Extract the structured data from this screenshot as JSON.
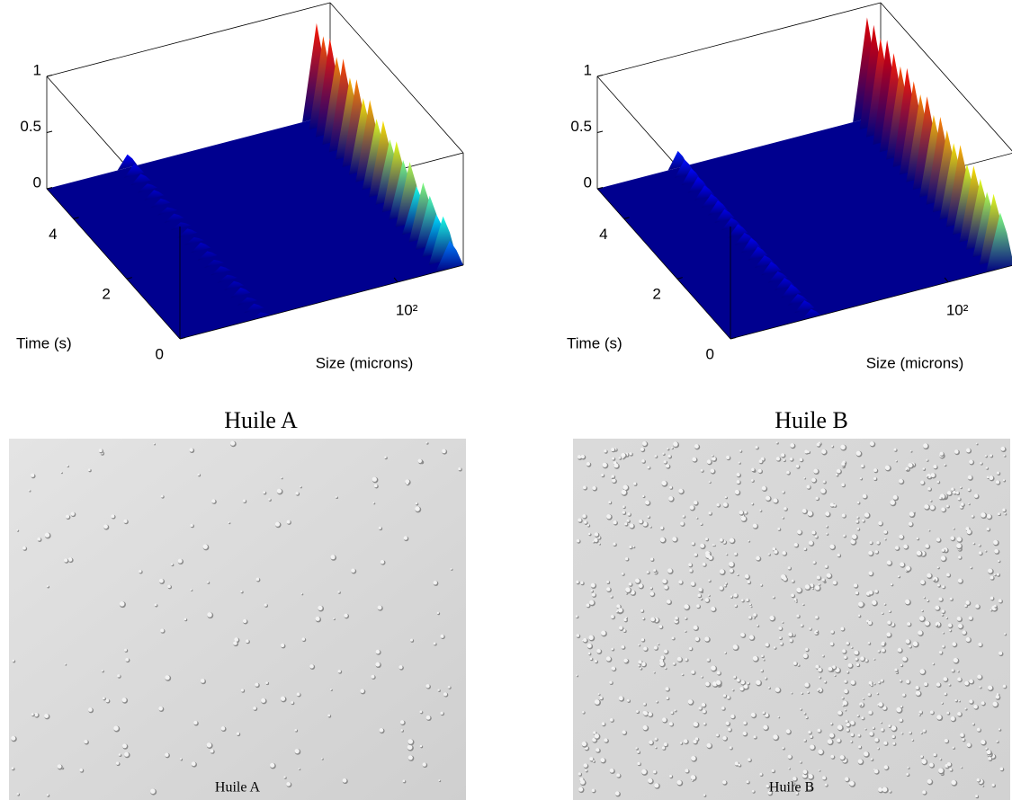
{
  "chart_data": [
    {
      "type": "surface3d",
      "caption": "Huile A",
      "micrograph_label": "Huile A",
      "x_label": "Size (microns)",
      "y_label": "Time (s)",
      "xscale": "log",
      "xlim": [
        1,
        400
      ],
      "xticks": [
        {
          "value": 100,
          "label": "10²"
        }
      ],
      "ylim": [
        0,
        5
      ],
      "yticks": [
        0,
        2,
        4
      ],
      "zlim": [
        0,
        1
      ],
      "zticks": [
        0,
        0.5,
        1
      ],
      "t": [
        0,
        0.25,
        0.5,
        0.75,
        1,
        1.25,
        1.5,
        1.75,
        2,
        2.25,
        2.5,
        2.75,
        3,
        3.25,
        3.5,
        3.75,
        4,
        4.25,
        4.5,
        4.75,
        5
      ],
      "ridges": [
        {
          "x": 5.5,
          "values": [
            0.05,
            0.06,
            0.05,
            0.07,
            0.06,
            0.05,
            0.06,
            0.05,
            0.06,
            0.07,
            0.05,
            0.06,
            0.05,
            0.06,
            0.05,
            0.06,
            0.07,
            0.06,
            0.08,
            0.1,
            0.12
          ]
        },
        {
          "x": 300,
          "values": [
            0.25,
            0.4,
            0.35,
            0.45,
            0.5,
            0.4,
            0.55,
            0.5,
            0.6,
            0.55,
            0.65,
            0.6,
            0.7,
            0.65,
            0.75,
            0.7,
            0.8,
            0.75,
            0.85,
            0.8,
            0.85
          ]
        }
      ]
    },
    {
      "type": "surface3d",
      "caption": "Huile B",
      "micrograph_label": "Huile B",
      "x_label": "Size (microns)",
      "y_label": "Time (s)",
      "xscale": "log",
      "xlim": [
        1,
        400
      ],
      "xticks": [
        {
          "value": 100,
          "label": "10²"
        }
      ],
      "ylim": [
        0,
        5
      ],
      "yticks": [
        0,
        2,
        4
      ],
      "zlim": [
        0,
        1
      ],
      "zticks": [
        0,
        0.5,
        1
      ],
      "t": [
        0,
        0.25,
        0.5,
        0.75,
        1,
        1.25,
        1.5,
        1.75,
        2,
        2.25,
        2.5,
        2.75,
        3,
        3.25,
        3.5,
        3.75,
        4,
        4.25,
        4.5,
        4.75,
        5
      ],
      "ridges": [
        {
          "x": 5.5,
          "values": [
            0.08,
            0.09,
            0.08,
            0.1,
            0.09,
            0.08,
            0.1,
            0.09,
            0.1,
            0.11,
            0.09,
            0.1,
            0.09,
            0.1,
            0.11,
            0.1,
            0.11,
            0.12,
            0.13,
            0.14,
            0.15
          ]
        },
        {
          "x": 300,
          "values": [
            0.5,
            0.6,
            0.55,
            0.6,
            0.65,
            0.6,
            0.7,
            0.65,
            0.7,
            0.75,
            0.7,
            0.8,
            0.75,
            0.8,
            0.85,
            0.8,
            0.85,
            0.9,
            0.85,
            0.9,
            0.9
          ]
        }
      ]
    }
  ]
}
